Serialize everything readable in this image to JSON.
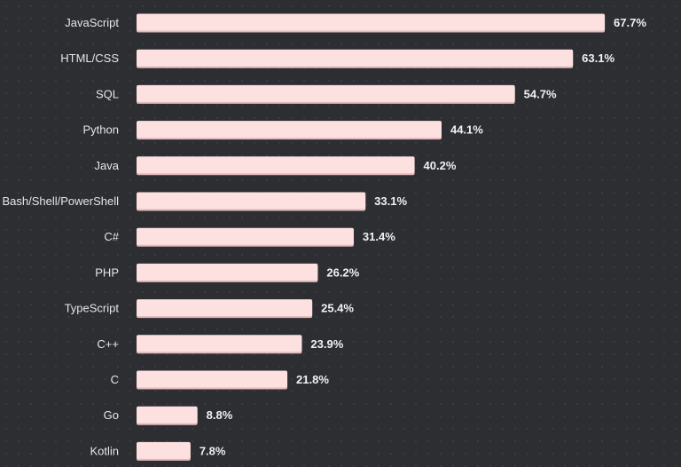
{
  "colors": {
    "background": "#2d2e32",
    "bar": "#fde1e1",
    "bar_shadow": "#e2b9bb",
    "label_text": "#e6e6e6",
    "value_text": "#f1f1f1"
  },
  "chart_data": {
    "type": "bar",
    "orientation": "horizontal",
    "title": "",
    "xlabel": "",
    "ylabel": "",
    "grid": false,
    "legend": "none",
    "xlim": [
      0,
      100
    ],
    "categories": [
      "JavaScript",
      "HTML/CSS",
      "SQL",
      "Python",
      "Java",
      "Bash/Shell/PowerShell",
      "C#",
      "PHP",
      "TypeScript",
      "C++",
      "C",
      "Go",
      "Kotlin"
    ],
    "values": [
      67.7,
      63.1,
      54.7,
      44.1,
      40.2,
      33.1,
      31.4,
      26.2,
      25.4,
      23.9,
      21.8,
      8.8,
      7.8
    ],
    "value_labels": [
      "67.7%",
      "63.1%",
      "54.7%",
      "44.1%",
      "40.2%",
      "33.1%",
      "31.4%",
      "26.2%",
      "25.4%",
      "23.9%",
      "21.8%",
      "8.8%",
      "7.8%"
    ]
  }
}
